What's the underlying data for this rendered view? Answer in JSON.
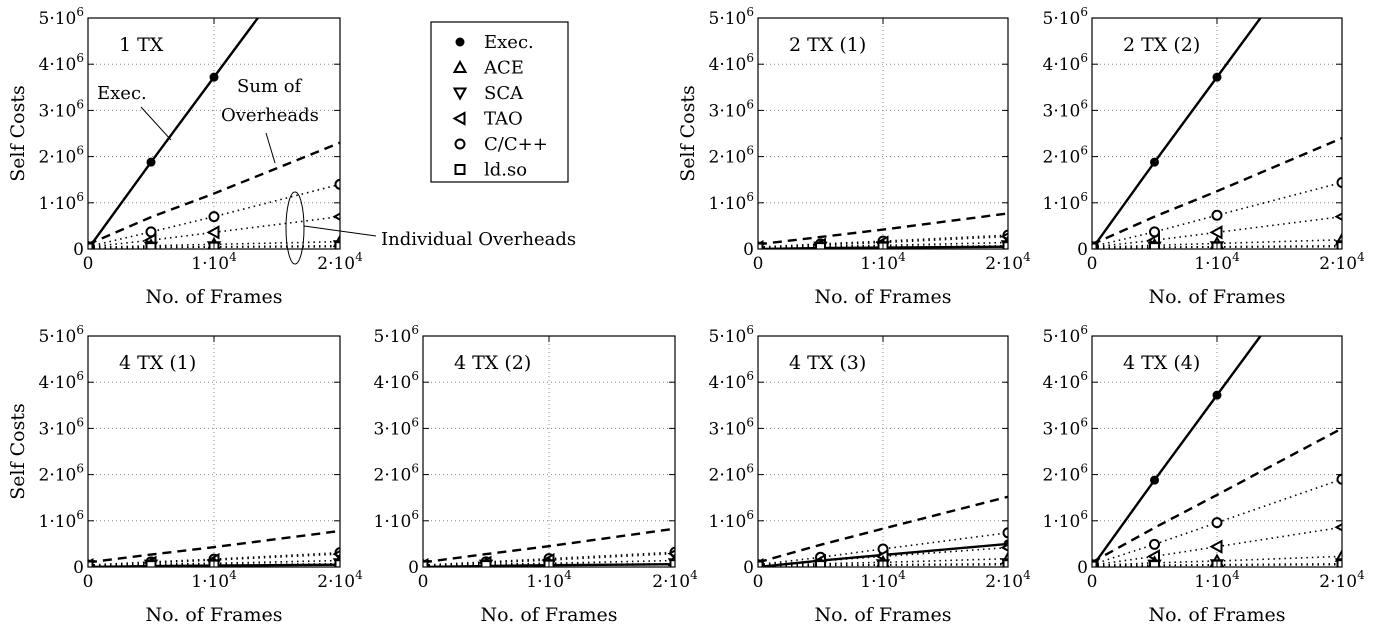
{
  "chart_data": {
    "type": "line",
    "x_axis": {
      "label": "No. of Frames",
      "ticks": [
        0,
        10000,
        20000
      ],
      "tick_labels": [
        {
          "base": "0",
          "exp": ""
        },
        {
          "base": "1·10",
          "exp": "4"
        },
        {
          "base": "2·10",
          "exp": "4"
        }
      ],
      "range": [
        0,
        20000
      ]
    },
    "y_axis": {
      "label": "Self Costs",
      "ticks": [
        0,
        1000000,
        2000000,
        3000000,
        4000000,
        5000000
      ],
      "tick_labels": [
        {
          "base": "0",
          "exp": ""
        },
        {
          "base": "1·10",
          "exp": "6"
        },
        {
          "base": "2·10",
          "exp": "6"
        },
        {
          "base": "3·10",
          "exp": "6"
        },
        {
          "base": "4·10",
          "exp": "6"
        },
        {
          "base": "5·10",
          "exp": "6"
        }
      ],
      "range": [
        0,
        5000000
      ]
    },
    "grid": true,
    "x_points": [
      0,
      5000,
      10000,
      20000
    ],
    "legend": {
      "placement": "top",
      "entries": [
        {
          "label": "Exec.",
          "marker": "filled-circle"
        },
        {
          "label": "ACE",
          "marker": "triangle-up"
        },
        {
          "label": "SCA",
          "marker": "triangle-down"
        },
        {
          "label": "TAO",
          "marker": "triangle-left"
        },
        {
          "label": "C/C++",
          "marker": "circle"
        },
        {
          "label": "ld.so",
          "marker": "square"
        }
      ]
    },
    "annotations": {
      "exec_label": "Exec.",
      "overheads_label_line1": "Sum of",
      "overheads_label_line2": "Overheads",
      "individual_label": "Individual Overheads"
    },
    "panels": [
      {
        "title": "1 TX",
        "series": [
          {
            "name": "Exec.",
            "style": "solid",
            "marker": "filled-circle",
            "values": [
              0,
              1880000,
              3720000,
              7400000
            ]
          },
          {
            "name": "Sum of Overheads",
            "style": "dashed",
            "marker": "none",
            "values": [
              100000,
              690000,
              1200000,
              2300000
            ]
          },
          {
            "name": "C/C++",
            "style": "dotted",
            "marker": "circle",
            "values": [
              50000,
              370000,
              700000,
              1400000
            ]
          },
          {
            "name": "TAO",
            "style": "dotted",
            "marker": "triangle-left",
            "values": [
              40000,
              190000,
              360000,
              700000
            ]
          },
          {
            "name": "ACE",
            "style": "dotted",
            "marker": "triangle-up",
            "values": [
              30000,
              70000,
              100000,
              160000
            ]
          },
          {
            "name": "SCA",
            "style": "dotted",
            "marker": "triangle-down",
            "values": [
              30000,
              40000,
              50000,
              70000
            ]
          },
          {
            "name": "ld.so",
            "style": "dotted",
            "marker": "square",
            "values": [
              20000,
              30000,
              40000,
              50000
            ]
          }
        ]
      },
      {
        "title": "2 TX (1)",
        "series": [
          {
            "name": "Exec.",
            "style": "solid",
            "marker": "filled-circle",
            "values": [
              0,
              20000,
              30000,
              50000
            ]
          },
          {
            "name": "Sum of Overheads",
            "style": "dashed",
            "marker": "none",
            "values": [
              100000,
              260000,
              420000,
              770000
            ]
          },
          {
            "name": "C/C++",
            "style": "dotted",
            "marker": "circle",
            "values": [
              40000,
              110000,
              170000,
              300000
            ]
          },
          {
            "name": "TAO",
            "style": "dotted",
            "marker": "triangle-left",
            "values": [
              40000,
              90000,
              140000,
              270000
            ]
          },
          {
            "name": "ACE",
            "style": "dotted",
            "marker": "triangle-up",
            "values": [
              30000,
              60000,
              80000,
              140000
            ]
          },
          {
            "name": "SCA",
            "style": "dotted",
            "marker": "triangle-down",
            "values": [
              30000,
              40000,
              50000,
              70000
            ]
          },
          {
            "name": "ld.so",
            "style": "dotted",
            "marker": "square",
            "values": [
              20000,
              30000,
              40000,
              50000
            ]
          }
        ]
      },
      {
        "title": "2 TX (2)",
        "series": [
          {
            "name": "Exec.",
            "style": "solid",
            "marker": "filled-circle",
            "values": [
              0,
              1880000,
              3720000,
              7400000
            ]
          },
          {
            "name": "Sum of Overheads",
            "style": "dashed",
            "marker": "none",
            "values": [
              100000,
              700000,
              1250000,
              2400000
            ]
          },
          {
            "name": "C/C++",
            "style": "dotted",
            "marker": "circle",
            "values": [
              50000,
              370000,
              730000,
              1440000
            ]
          },
          {
            "name": "TAO",
            "style": "dotted",
            "marker": "triangle-left",
            "values": [
              40000,
              190000,
              360000,
              700000
            ]
          },
          {
            "name": "ACE",
            "style": "dotted",
            "marker": "triangle-up",
            "values": [
              30000,
              80000,
              120000,
              200000
            ]
          },
          {
            "name": "SCA",
            "style": "dotted",
            "marker": "triangle-down",
            "values": [
              30000,
              40000,
              50000,
              70000
            ]
          },
          {
            "name": "ld.so",
            "style": "dotted",
            "marker": "square",
            "values": [
              20000,
              30000,
              40000,
              50000
            ]
          }
        ]
      },
      {
        "title": "4 TX (1)",
        "series": [
          {
            "name": "Exec.",
            "style": "solid",
            "marker": "filled-circle",
            "values": [
              0,
              20000,
              30000,
              50000
            ]
          },
          {
            "name": "Sum of Overheads",
            "style": "dashed",
            "marker": "none",
            "values": [
              100000,
              270000,
              430000,
              780000
            ]
          },
          {
            "name": "C/C++",
            "style": "dotted",
            "marker": "circle",
            "values": [
              40000,
              110000,
              170000,
              310000
            ]
          },
          {
            "name": "TAO",
            "style": "dotted",
            "marker": "triangle-left",
            "values": [
              40000,
              90000,
              150000,
              280000
            ]
          },
          {
            "name": "ACE",
            "style": "dotted",
            "marker": "triangle-up",
            "values": [
              30000,
              60000,
              80000,
              140000
            ]
          },
          {
            "name": "SCA",
            "style": "dotted",
            "marker": "triangle-down",
            "values": [
              30000,
              40000,
              50000,
              70000
            ]
          },
          {
            "name": "ld.so",
            "style": "dotted",
            "marker": "square",
            "values": [
              20000,
              30000,
              40000,
              50000
            ]
          }
        ]
      },
      {
        "title": "4 TX (2)",
        "series": [
          {
            "name": "Exec.",
            "style": "solid",
            "marker": "filled-circle",
            "values": [
              0,
              20000,
              40000,
              60000
            ]
          },
          {
            "name": "Sum of Overheads",
            "style": "dashed",
            "marker": "none",
            "values": [
              100000,
              280000,
              450000,
              830000
            ]
          },
          {
            "name": "C/C++",
            "style": "dotted",
            "marker": "circle",
            "values": [
              40000,
              110000,
              180000,
              320000
            ]
          },
          {
            "name": "TAO",
            "style": "dotted",
            "marker": "triangle-left",
            "values": [
              40000,
              90000,
              150000,
              290000
            ]
          },
          {
            "name": "ACE",
            "style": "dotted",
            "marker": "triangle-up",
            "values": [
              30000,
              60000,
              80000,
              140000
            ]
          },
          {
            "name": "SCA",
            "style": "dotted",
            "marker": "triangle-down",
            "values": [
              30000,
              40000,
              50000,
              70000
            ]
          },
          {
            "name": "ld.so",
            "style": "dotted",
            "marker": "square",
            "values": [
              20000,
              30000,
              40000,
              50000
            ]
          }
        ]
      },
      {
        "title": "4 TX (3)",
        "series": [
          {
            "name": "Exec.",
            "style": "solid",
            "marker": "filled-circle",
            "values": [
              0,
              140000,
              260000,
              500000
            ]
          },
          {
            "name": "Sum of Overheads",
            "style": "dashed",
            "marker": "none",
            "values": [
              100000,
              480000,
              830000,
              1520000
            ]
          },
          {
            "name": "C/C++",
            "style": "dotted",
            "marker": "circle",
            "values": [
              50000,
              210000,
              390000,
              740000
            ]
          },
          {
            "name": "TAO",
            "style": "dotted",
            "marker": "triangle-left",
            "values": [
              40000,
              130000,
              230000,
              420000
            ]
          },
          {
            "name": "ACE",
            "style": "dotted",
            "marker": "triangle-up",
            "values": [
              30000,
              70000,
              100000,
              180000
            ]
          },
          {
            "name": "SCA",
            "style": "dotted",
            "marker": "triangle-down",
            "values": [
              30000,
              40000,
              50000,
              70000
            ]
          },
          {
            "name": "ld.so",
            "style": "dotted",
            "marker": "square",
            "values": [
              20000,
              30000,
              40000,
              50000
            ]
          }
        ]
      },
      {
        "title": "4 TX (4)",
        "series": [
          {
            "name": "Exec.",
            "style": "solid",
            "marker": "filled-circle",
            "values": [
              0,
              1880000,
              3720000,
              7400000
            ]
          },
          {
            "name": "Sum of Overheads",
            "style": "dashed",
            "marker": "none",
            "values": [
              100000,
              850000,
              1560000,
              3000000
            ]
          },
          {
            "name": "C/C++",
            "style": "dotted",
            "marker": "circle",
            "values": [
              50000,
              490000,
              960000,
              1900000
            ]
          },
          {
            "name": "TAO",
            "style": "dotted",
            "marker": "triangle-left",
            "values": [
              40000,
              230000,
              440000,
              860000
            ]
          },
          {
            "name": "ACE",
            "style": "dotted",
            "marker": "triangle-up",
            "values": [
              30000,
              90000,
              130000,
              230000
            ]
          },
          {
            "name": "SCA",
            "style": "dotted",
            "marker": "triangle-down",
            "values": [
              30000,
              40000,
              50000,
              70000
            ]
          },
          {
            "name": "ld.so",
            "style": "dotted",
            "marker": "square",
            "values": [
              20000,
              30000,
              40000,
              50000
            ]
          }
        ]
      }
    ]
  }
}
